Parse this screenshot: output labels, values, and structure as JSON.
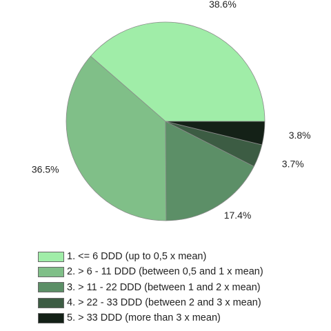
{
  "chart_data": {
    "type": "pie",
    "slices": [
      {
        "label": "1. <= 6 DDD (up to 0,5 x mean)",
        "value": 38.6,
        "value_label": "38.6%",
        "color": "#a0eda8"
      },
      {
        "label": "2. > 6 - 11 DDD (between 0,5 and 1 x mean)",
        "value": 36.5,
        "value_label": "36.5%",
        "color": "#80bf88"
      },
      {
        "label": "3. > 11 - 22 DDD (between 1 and 2 x mean)",
        "value": 17.4,
        "value_label": "17.4%",
        "color": "#5c8f67"
      },
      {
        "label": "4. > 22 - 33 DDD (between 2 and 3 x mean)",
        "value": 3.7,
        "value_label": "3.7%",
        "color": "#3c5c43"
      },
      {
        "label": "5. > 33 DDD (more than 3 x mean)",
        "value": 3.8,
        "value_label": "3.8%",
        "color": "#142117"
      }
    ],
    "start_angle_deg": 0,
    "direction": "counterclockwise",
    "legend_position": "bottom-left",
    "title": ""
  }
}
